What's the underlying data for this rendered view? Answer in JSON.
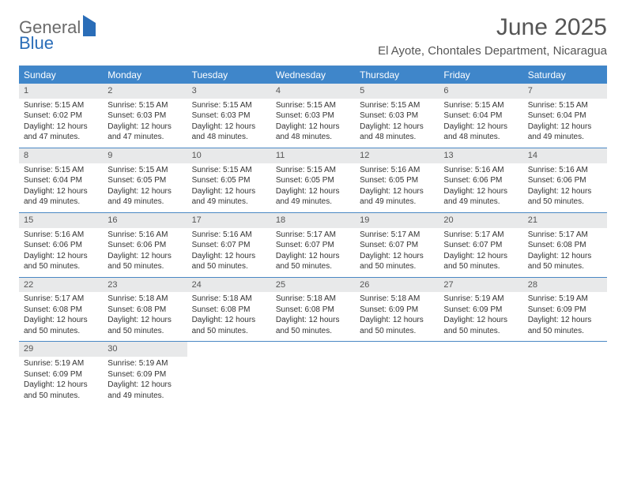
{
  "logo": {
    "part1": "General",
    "part2": "Blue"
  },
  "title": "June 2025",
  "location": "El Ayote, Chontales Department, Nicaragua",
  "colors": {
    "header_bg": "#3f86ca",
    "header_text": "#ffffff",
    "daynum_bg": "#e8e9ea",
    "border": "#4a88c4",
    "logo_gray": "#6a6a6a",
    "logo_blue": "#2a6db8"
  },
  "day_headers": [
    "Sunday",
    "Monday",
    "Tuesday",
    "Wednesday",
    "Thursday",
    "Friday",
    "Saturday"
  ],
  "weeks": [
    [
      {
        "n": "1",
        "sr": "Sunrise: 5:15 AM",
        "ss": "Sunset: 6:02 PM",
        "dl": "Daylight: 12 hours and 47 minutes."
      },
      {
        "n": "2",
        "sr": "Sunrise: 5:15 AM",
        "ss": "Sunset: 6:03 PM",
        "dl": "Daylight: 12 hours and 47 minutes."
      },
      {
        "n": "3",
        "sr": "Sunrise: 5:15 AM",
        "ss": "Sunset: 6:03 PM",
        "dl": "Daylight: 12 hours and 48 minutes."
      },
      {
        "n": "4",
        "sr": "Sunrise: 5:15 AM",
        "ss": "Sunset: 6:03 PM",
        "dl": "Daylight: 12 hours and 48 minutes."
      },
      {
        "n": "5",
        "sr": "Sunrise: 5:15 AM",
        "ss": "Sunset: 6:03 PM",
        "dl": "Daylight: 12 hours and 48 minutes."
      },
      {
        "n": "6",
        "sr": "Sunrise: 5:15 AM",
        "ss": "Sunset: 6:04 PM",
        "dl": "Daylight: 12 hours and 48 minutes."
      },
      {
        "n": "7",
        "sr": "Sunrise: 5:15 AM",
        "ss": "Sunset: 6:04 PM",
        "dl": "Daylight: 12 hours and 49 minutes."
      }
    ],
    [
      {
        "n": "8",
        "sr": "Sunrise: 5:15 AM",
        "ss": "Sunset: 6:04 PM",
        "dl": "Daylight: 12 hours and 49 minutes."
      },
      {
        "n": "9",
        "sr": "Sunrise: 5:15 AM",
        "ss": "Sunset: 6:05 PM",
        "dl": "Daylight: 12 hours and 49 minutes."
      },
      {
        "n": "10",
        "sr": "Sunrise: 5:15 AM",
        "ss": "Sunset: 6:05 PM",
        "dl": "Daylight: 12 hours and 49 minutes."
      },
      {
        "n": "11",
        "sr": "Sunrise: 5:15 AM",
        "ss": "Sunset: 6:05 PM",
        "dl": "Daylight: 12 hours and 49 minutes."
      },
      {
        "n": "12",
        "sr": "Sunrise: 5:16 AM",
        "ss": "Sunset: 6:05 PM",
        "dl": "Daylight: 12 hours and 49 minutes."
      },
      {
        "n": "13",
        "sr": "Sunrise: 5:16 AM",
        "ss": "Sunset: 6:06 PM",
        "dl": "Daylight: 12 hours and 49 minutes."
      },
      {
        "n": "14",
        "sr": "Sunrise: 5:16 AM",
        "ss": "Sunset: 6:06 PM",
        "dl": "Daylight: 12 hours and 50 minutes."
      }
    ],
    [
      {
        "n": "15",
        "sr": "Sunrise: 5:16 AM",
        "ss": "Sunset: 6:06 PM",
        "dl": "Daylight: 12 hours and 50 minutes."
      },
      {
        "n": "16",
        "sr": "Sunrise: 5:16 AM",
        "ss": "Sunset: 6:06 PM",
        "dl": "Daylight: 12 hours and 50 minutes."
      },
      {
        "n": "17",
        "sr": "Sunrise: 5:16 AM",
        "ss": "Sunset: 6:07 PM",
        "dl": "Daylight: 12 hours and 50 minutes."
      },
      {
        "n": "18",
        "sr": "Sunrise: 5:17 AM",
        "ss": "Sunset: 6:07 PM",
        "dl": "Daylight: 12 hours and 50 minutes."
      },
      {
        "n": "19",
        "sr": "Sunrise: 5:17 AM",
        "ss": "Sunset: 6:07 PM",
        "dl": "Daylight: 12 hours and 50 minutes."
      },
      {
        "n": "20",
        "sr": "Sunrise: 5:17 AM",
        "ss": "Sunset: 6:07 PM",
        "dl": "Daylight: 12 hours and 50 minutes."
      },
      {
        "n": "21",
        "sr": "Sunrise: 5:17 AM",
        "ss": "Sunset: 6:08 PM",
        "dl": "Daylight: 12 hours and 50 minutes."
      }
    ],
    [
      {
        "n": "22",
        "sr": "Sunrise: 5:17 AM",
        "ss": "Sunset: 6:08 PM",
        "dl": "Daylight: 12 hours and 50 minutes."
      },
      {
        "n": "23",
        "sr": "Sunrise: 5:18 AM",
        "ss": "Sunset: 6:08 PM",
        "dl": "Daylight: 12 hours and 50 minutes."
      },
      {
        "n": "24",
        "sr": "Sunrise: 5:18 AM",
        "ss": "Sunset: 6:08 PM",
        "dl": "Daylight: 12 hours and 50 minutes."
      },
      {
        "n": "25",
        "sr": "Sunrise: 5:18 AM",
        "ss": "Sunset: 6:08 PM",
        "dl": "Daylight: 12 hours and 50 minutes."
      },
      {
        "n": "26",
        "sr": "Sunrise: 5:18 AM",
        "ss": "Sunset: 6:09 PM",
        "dl": "Daylight: 12 hours and 50 minutes."
      },
      {
        "n": "27",
        "sr": "Sunrise: 5:19 AM",
        "ss": "Sunset: 6:09 PM",
        "dl": "Daylight: 12 hours and 50 minutes."
      },
      {
        "n": "28",
        "sr": "Sunrise: 5:19 AM",
        "ss": "Sunset: 6:09 PM",
        "dl": "Daylight: 12 hours and 50 minutes."
      }
    ],
    [
      {
        "n": "29",
        "sr": "Sunrise: 5:19 AM",
        "ss": "Sunset: 6:09 PM",
        "dl": "Daylight: 12 hours and 50 minutes."
      },
      {
        "n": "30",
        "sr": "Sunrise: 5:19 AM",
        "ss": "Sunset: 6:09 PM",
        "dl": "Daylight: 12 hours and 49 minutes."
      },
      null,
      null,
      null,
      null,
      null
    ]
  ]
}
